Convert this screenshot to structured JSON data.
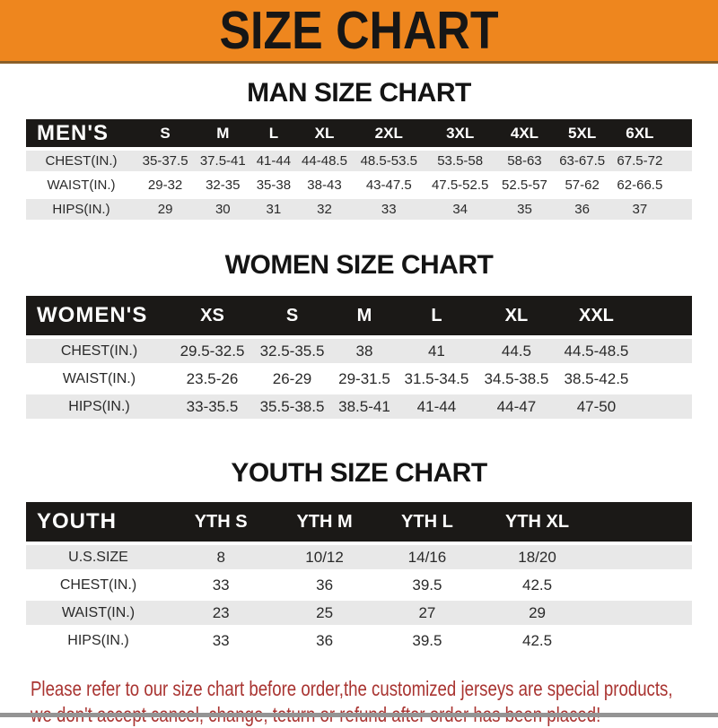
{
  "banner": {
    "title": "SIZE CHART"
  },
  "colors": {
    "banner_bg": "#ee861e",
    "banner_edge": "#8a5f28",
    "header_bar_bg": "#1b1917",
    "header_bar_text": "#ffffff",
    "row_shade": "#e8e8e8",
    "note_red": "#a93431",
    "bottom_strip": "#949494"
  },
  "sections": [
    {
      "id": "men",
      "heading": "MAN SIZE CHART",
      "corner_label": "MEN'S",
      "columns": [
        "S",
        "M",
        "L",
        "XL",
        "2XL",
        "3XL",
        "4XL",
        "5XL",
        "6XL"
      ],
      "rows": [
        {
          "label": "CHEST(IN.)",
          "values": [
            "35-37.5",
            "37.5-41",
            "41-44",
            "44-48.5",
            "48.5-53.5",
            "53.5-58",
            "58-63",
            "63-67.5",
            "67.5-72"
          ]
        },
        {
          "label": "WAIST(IN.)",
          "values": [
            "29-32",
            "32-35",
            "35-38",
            "38-43",
            "43-47.5",
            "47.5-52.5",
            "52.5-57",
            "57-62",
            "62-66.5"
          ]
        },
        {
          "label": "HIPS(IN.)",
          "values": [
            "29",
            "30",
            "31",
            "32",
            "33",
            "34",
            "35",
            "36",
            "37"
          ]
        }
      ]
    },
    {
      "id": "women",
      "heading": "WOMEN SIZE CHART",
      "corner_label": "WOMEN'S",
      "columns": [
        "XS",
        "S",
        "M",
        "L",
        "XL",
        "XXL"
      ],
      "rows": [
        {
          "label": "CHEST(IN.)",
          "values": [
            "29.5-32.5",
            "32.5-35.5",
            "38",
            "41",
            "44.5",
            "44.5-48.5"
          ]
        },
        {
          "label": "WAIST(IN.)",
          "values": [
            "23.5-26",
            "26-29",
            "29-31.5",
            "31.5-34.5",
            "34.5-38.5",
            "38.5-42.5"
          ]
        },
        {
          "label": "HIPS(IN.)",
          "values": [
            "33-35.5",
            "35.5-38.5",
            "38.5-41",
            "41-44",
            "44-47",
            "47-50"
          ]
        }
      ]
    },
    {
      "id": "youth",
      "heading": "YOUTH SIZE CHART",
      "corner_label": "YOUTH",
      "columns": [
        "YTH S",
        "YTH M",
        "YTH L",
        "YTH XL"
      ],
      "rows": [
        {
          "label": "U.S.SIZE",
          "values": [
            "8",
            "10/12",
            "14/16",
            "18/20"
          ]
        },
        {
          "label": "CHEST(IN.)",
          "values": [
            "33",
            "36",
            "39.5",
            "42.5"
          ]
        },
        {
          "label": "WAIST(IN.)",
          "values": [
            "23",
            "25",
            "27",
            "29"
          ]
        },
        {
          "label": "HIPS(IN.)",
          "values": [
            "33",
            "36",
            "39.5",
            "42.5"
          ]
        }
      ]
    }
  ],
  "footer": {
    "line1": "Please refer to our size chart before order,the customized jerseys are special products,",
    "line2": "we don't accept cancel, change, teturn or refund after order has been placed!"
  }
}
